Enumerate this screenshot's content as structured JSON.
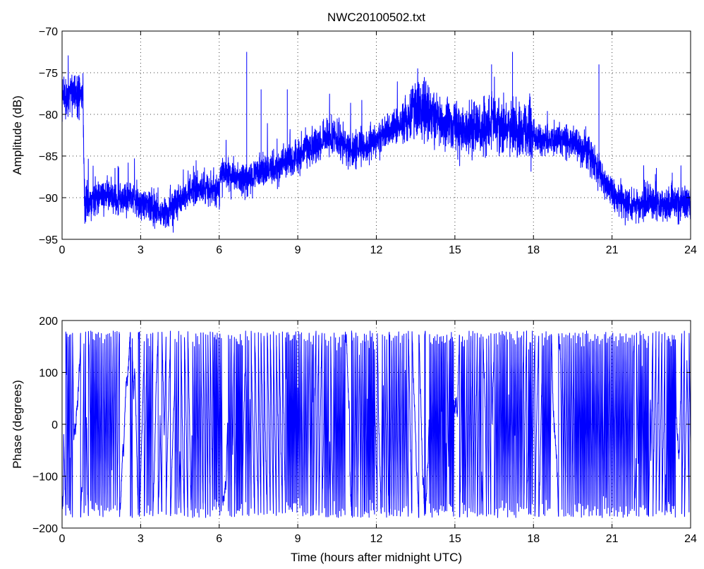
{
  "figure": {
    "title": "NWC20100502.txt"
  },
  "chart_data": [
    {
      "type": "line",
      "title": "NWC20100502.txt",
      "xlabel": "",
      "ylabel": "Amplitude (dB)",
      "xlim": [
        0,
        24
      ],
      "ylim": [
        -95,
        -70
      ],
      "xticks": [
        0,
        3,
        6,
        9,
        12,
        15,
        18,
        21,
        24
      ],
      "yticks": [
        -70,
        -75,
        -80,
        -85,
        -90,
        -95
      ],
      "grid": true,
      "series_color": "#0000ff",
      "envelope": {
        "x": [
          0,
          0.5,
          0.8,
          0.85,
          1.5,
          2,
          2.5,
          3,
          3.5,
          4,
          4.5,
          5,
          5.5,
          6,
          6.05,
          6.5,
          7,
          7.5,
          8,
          8.5,
          9,
          9.5,
          10,
          10.5,
          11,
          11.5,
          12,
          12.5,
          13,
          13.5,
          14,
          14.5,
          15,
          15.5,
          16,
          16.5,
          17,
          17.5,
          18,
          18.5,
          19,
          19.5,
          20,
          20.5,
          21,
          21.5,
          22,
          22.5,
          23,
          23.5,
          24
        ],
        "y": [
          -78,
          -77.5,
          -77.5,
          -90.5,
          -89.5,
          -90,
          -90,
          -90.5,
          -91,
          -92,
          -90,
          -89,
          -89,
          -89,
          -87,
          -87.5,
          -88,
          -87,
          -86.5,
          -86,
          -85,
          -84,
          -83,
          -83,
          -84.5,
          -84,
          -83,
          -82,
          -81,
          -79,
          -80,
          -81,
          -81.5,
          -82,
          -81.5,
          -81,
          -81.5,
          -82,
          -82.5,
          -83,
          -83,
          -83.5,
          -84.5,
          -87,
          -89.5,
          -90.5,
          -91,
          -90.5,
          -91,
          -90.5,
          -91
        ]
      },
      "spikes": [
        {
          "x": 7.05,
          "y": -72.5
        },
        {
          "x": 7.6,
          "y": -77
        },
        {
          "x": 8.6,
          "y": -77
        },
        {
          "x": 13.8,
          "y": -76
        },
        {
          "x": 16.4,
          "y": -74
        },
        {
          "x": 17.2,
          "y": -72.5
        },
        {
          "x": 20.5,
          "y": -74
        },
        {
          "x": 23.3,
          "y": -87
        }
      ]
    },
    {
      "type": "line",
      "title": "",
      "xlabel": "Time (hours after midnight UTC)",
      "ylabel": "Phase (degrees)",
      "xlim": [
        0,
        24
      ],
      "ylim": [
        -200,
        200
      ],
      "xticks": [
        0,
        3,
        6,
        9,
        12,
        15,
        18,
        21,
        24
      ],
      "yticks": [
        200,
        100,
        0,
        -100,
        -200
      ],
      "grid": true,
      "series_color": "#0000ff",
      "wrap_range": [
        -180,
        180
      ]
    }
  ]
}
